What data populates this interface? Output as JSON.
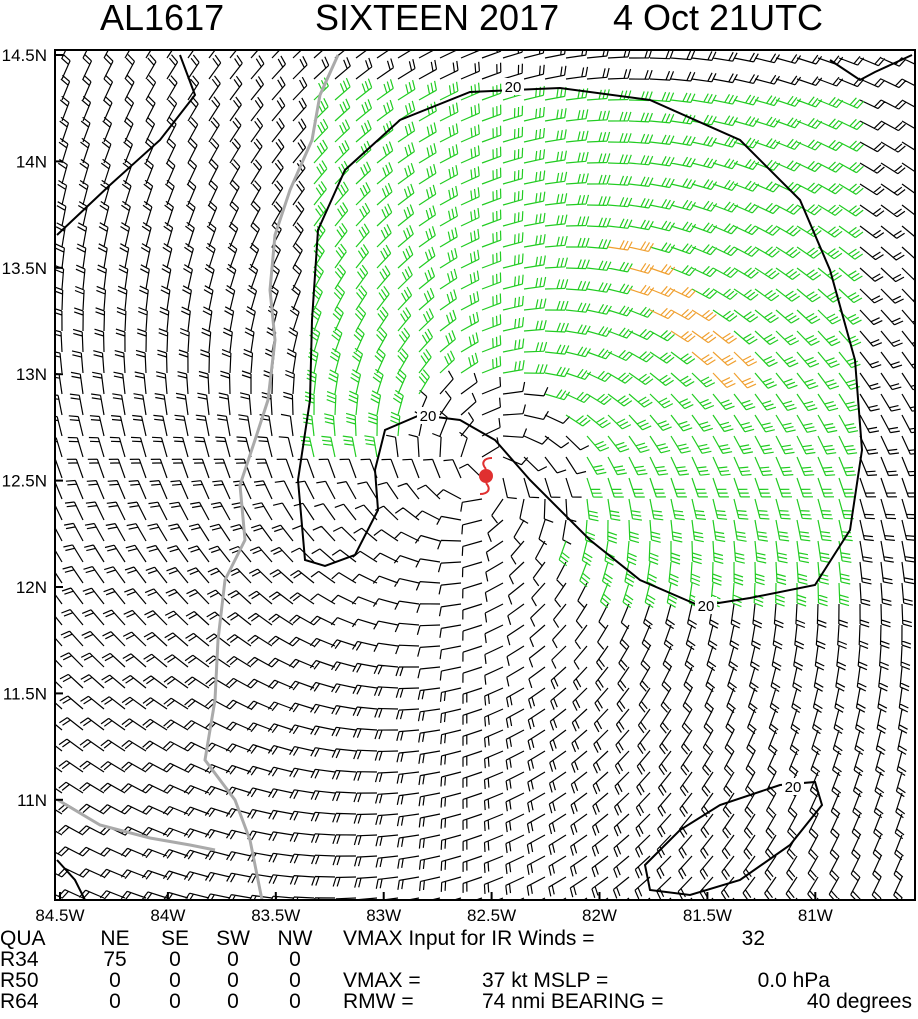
{
  "header": {
    "storm_id": "AL1617",
    "storm_name": "SIXTEEN 2017",
    "time": "4 Oct 21UTC"
  },
  "map": {
    "lat_labels": [
      "14.5N",
      "14N",
      "13.5N",
      "13N",
      "12.5N",
      "12N",
      "11.5N",
      "11N"
    ],
    "lon_labels": [
      "84.5W",
      "84W",
      "83.5W",
      "83W",
      "82.5W",
      "82W",
      "81.5W",
      "81W"
    ],
    "contour_labels": [
      "20",
      "20",
      "20",
      "20"
    ]
  },
  "table": {
    "rows": [
      [
        "QUA",
        "NE",
        "SE",
        "SW",
        "NW"
      ],
      [
        "R34",
        "75",
        "0",
        "0",
        "0"
      ],
      [
        "R50",
        "0",
        "0",
        "0",
        "0"
      ],
      [
        "R64",
        "0",
        "0",
        "0",
        "0"
      ]
    ],
    "notes": [
      "VMAX Input for IR Winds =",
      "32",
      "VMAX =",
      "37 kt MSLP =",
      "0.0 hPa",
      "RMW =",
      "74 nmi BEARING =",
      "40 degrees"
    ]
  }
}
